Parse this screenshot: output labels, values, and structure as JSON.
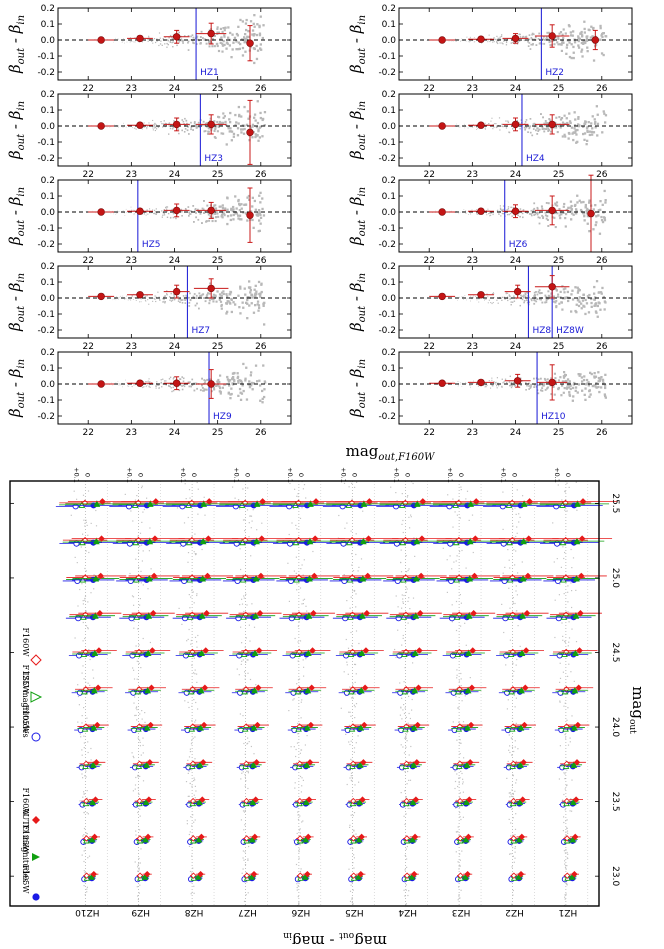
{
  "chart_data": [
    {
      "type": "scatter",
      "title": "",
      "ylabel": "β_out - β_in",
      "xlabel": "mag_out,F160W",
      "xlim": [
        21.3,
        26.7
      ],
      "ylim": [
        -0.25,
        0.2
      ],
      "xticks": [
        "22",
        "23",
        "24",
        "25",
        "26"
      ],
      "yticks": [
        "0.2",
        "0.1",
        "0.0",
        "-0.1",
        "-0.2"
      ],
      "reference_line": 0.0,
      "grid": false,
      "panels": [
        {
          "name": "HZ1",
          "threshold": 24.5,
          "points": [
            {
              "x": 22.3,
              "y": 0.0,
              "err_x": 0.3,
              "err_y": 0.01
            },
            {
              "x": 23.2,
              "y": 0.01,
              "err_x": 0.3,
              "err_y": 0.015
            },
            {
              "x": 24.05,
              "y": 0.02,
              "err_x": 0.3,
              "err_y": 0.04
            },
            {
              "x": 24.85,
              "y": 0.04,
              "err_x": 0.35,
              "err_y": 0.065
            },
            {
              "x": 25.75,
              "y": -0.02,
              "err_x": 0.0,
              "err_y": 0.11
            }
          ]
        },
        {
          "name": "HZ2",
          "threshold": 24.6,
          "points": [
            {
              "x": 22.3,
              "y": 0.0,
              "err_x": 0.3,
              "err_y": 0.01
            },
            {
              "x": 23.2,
              "y": 0.005,
              "err_x": 0.3,
              "err_y": 0.015
            },
            {
              "x": 24.0,
              "y": 0.01,
              "err_x": 0.3,
              "err_y": 0.03
            },
            {
              "x": 24.85,
              "y": 0.025,
              "err_x": 0.4,
              "err_y": 0.07
            },
            {
              "x": 25.85,
              "y": 0.0,
              "err_x": 0.0,
              "err_y": 0.06
            }
          ]
        },
        {
          "name": "HZ3",
          "threshold": 24.6,
          "points": [
            {
              "x": 22.3,
              "y": 0.0,
              "err_x": 0.3,
              "err_y": 0.01
            },
            {
              "x": 23.2,
              "y": 0.005,
              "err_x": 0.3,
              "err_y": 0.015
            },
            {
              "x": 24.05,
              "y": 0.01,
              "err_x": 0.3,
              "err_y": 0.04
            },
            {
              "x": 24.85,
              "y": 0.01,
              "err_x": 0.35,
              "err_y": 0.06
            },
            {
              "x": 25.75,
              "y": -0.04,
              "err_x": 0.0,
              "err_y": 0.2
            }
          ]
        },
        {
          "name": "HZ4",
          "threshold": 24.15,
          "points": [
            {
              "x": 22.3,
              "y": 0.0,
              "err_x": 0.3,
              "err_y": 0.01
            },
            {
              "x": 23.2,
              "y": 0.005,
              "err_x": 0.3,
              "err_y": 0.015
            },
            {
              "x": 24.0,
              "y": 0.01,
              "err_x": 0.3,
              "err_y": 0.04
            },
            {
              "x": 24.85,
              "y": 0.01,
              "err_x": 0.4,
              "err_y": 0.06
            }
          ]
        },
        {
          "name": "HZ5",
          "threshold": 23.15,
          "points": [
            {
              "x": 22.3,
              "y": 0.0,
              "err_x": 0.3,
              "err_y": 0.01
            },
            {
              "x": 23.2,
              "y": 0.005,
              "err_x": 0.3,
              "err_y": 0.015
            },
            {
              "x": 24.05,
              "y": 0.01,
              "err_x": 0.3,
              "err_y": 0.04
            },
            {
              "x": 24.85,
              "y": 0.01,
              "err_x": 0.35,
              "err_y": 0.05
            },
            {
              "x": 25.75,
              "y": -0.02,
              "err_x": 0.0,
              "err_y": 0.17
            }
          ]
        },
        {
          "name": "HZ6",
          "threshold": 23.75,
          "points": [
            {
              "x": 22.3,
              "y": 0.0,
              "err_x": 0.3,
              "err_y": 0.01
            },
            {
              "x": 23.2,
              "y": 0.005,
              "err_x": 0.3,
              "err_y": 0.015
            },
            {
              "x": 24.0,
              "y": 0.005,
              "err_x": 0.3,
              "err_y": 0.04
            },
            {
              "x": 24.85,
              "y": 0.01,
              "err_x": 0.4,
              "err_y": 0.09
            },
            {
              "x": 25.75,
              "y": -0.01,
              "err_x": 0.0,
              "err_y": 0.24
            }
          ]
        },
        {
          "name": "HZ7",
          "threshold": 24.3,
          "points": [
            {
              "x": 22.3,
              "y": 0.01,
              "err_x": 0.3,
              "err_y": 0.01
            },
            {
              "x": 23.2,
              "y": 0.02,
              "err_x": 0.3,
              "err_y": 0.015
            },
            {
              "x": 24.05,
              "y": 0.04,
              "err_x": 0.3,
              "err_y": 0.04
            },
            {
              "x": 24.85,
              "y": 0.06,
              "err_x": 0.4,
              "err_y": 0.06
            }
          ]
        },
        {
          "name": "HZ8",
          "threshold": 24.3,
          "threshold_label2": "HZ8W",
          "threshold2": 24.85,
          "points": [
            {
              "x": 22.3,
              "y": 0.01,
              "err_x": 0.3,
              "err_y": 0.01
            },
            {
              "x": 23.2,
              "y": 0.02,
              "err_x": 0.3,
              "err_y": 0.015
            },
            {
              "x": 24.05,
              "y": 0.04,
              "err_x": 0.3,
              "err_y": 0.04
            },
            {
              "x": 24.85,
              "y": 0.07,
              "err_x": 0.4,
              "err_y": 0.07
            }
          ]
        },
        {
          "name": "HZ9",
          "threshold": 24.8,
          "points": [
            {
              "x": 22.3,
              "y": 0.0,
              "err_x": 0.3,
              "err_y": 0.01
            },
            {
              "x": 23.2,
              "y": 0.005,
              "err_x": 0.3,
              "err_y": 0.015
            },
            {
              "x": 24.05,
              "y": 0.005,
              "err_x": 0.3,
              "err_y": 0.04
            },
            {
              "x": 24.85,
              "y": 0.0,
              "err_x": 0.35,
              "err_y": 0.09
            }
          ]
        },
        {
          "name": "HZ10",
          "threshold": 24.5,
          "points": [
            {
              "x": 22.3,
              "y": 0.005,
              "err_x": 0.3,
              "err_y": 0.01
            },
            {
              "x": 23.2,
              "y": 0.01,
              "err_x": 0.3,
              "err_y": 0.015
            },
            {
              "x": 24.05,
              "y": 0.02,
              "err_x": 0.3,
              "err_y": 0.04
            },
            {
              "x": 24.85,
              "y": 0.01,
              "err_x": 0.35,
              "err_y": 0.11
            }
          ]
        }
      ]
    },
    {
      "type": "scatter",
      "title": "",
      "xlabel": "mag_out - mag_in",
      "ylabel": "mag_out",
      "column_tick_labels": [
        "0",
        "+0.1"
      ],
      "columns": [
        "HZ10",
        "HZ9",
        "HZ8",
        "HZ7",
        "HZ6",
        "HZ5",
        "HZ4",
        "HZ3",
        "HZ2",
        "HZ1"
      ],
      "mag_ticks": [
        "23.0",
        "23.5",
        "24.0",
        "24.5",
        "25.0",
        "25.5"
      ],
      "mag_range": [
        22.8,
        25.65
      ],
      "mag_levels": [
        23.0,
        23.25,
        23.5,
        23.75,
        24.0,
        24.25,
        24.5,
        24.75,
        25.0,
        25.25,
        25.5
      ],
      "offset_range": [
        -0.12,
        0.16
      ],
      "legend": {
        "auto_title": "AUTO magnitudes",
        "iso_title": "ISO magnitudes",
        "entries": [
          "F105W",
          "F125W",
          "F160W"
        ]
      },
      "series": [
        {
          "name": "AUTO F105W",
          "color": "#1a1ae6",
          "marker": "filled-circle"
        },
        {
          "name": "AUTO F125W",
          "color": "#11a011",
          "marker": "filled-triangle"
        },
        {
          "name": "AUTO F160W",
          "color": "#e61a1a",
          "marker": "filled-diamond"
        },
        {
          "name": "ISO F105W",
          "color": "#1a1ae6",
          "marker": "open-circle"
        },
        {
          "name": "ISO F125W",
          "color": "#11a011",
          "marker": "open-triangle"
        },
        {
          "name": "ISO F160W",
          "color": "#e61a1a",
          "marker": "open-diamond"
        }
      ]
    }
  ]
}
